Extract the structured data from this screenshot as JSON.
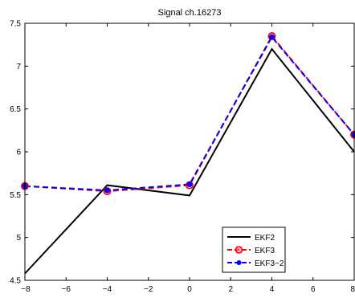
{
  "chart_data": {
    "type": "line",
    "title": "Signal ch.16273",
    "xlabel": "",
    "ylabel": "",
    "xlim": [
      -8,
      8
    ],
    "ylim": [
      4.5,
      7.5
    ],
    "xticks": [
      -8,
      -6,
      -4,
      -2,
      0,
      2,
      4,
      6,
      8
    ],
    "yticks": [
      4.5,
      5,
      5.5,
      6,
      6.5,
      7,
      7.5
    ],
    "xtick_labels": [
      "−8",
      "−6",
      "−4",
      "−2",
      "0",
      "2",
      "4",
      "6",
      "8"
    ],
    "ytick_labels": [
      "4.5",
      "5",
      "5.5",
      "6",
      "6.5",
      "7",
      "7.5"
    ],
    "grid": false,
    "legend_position": "bottom-right",
    "series": [
      {
        "name": "EKF2",
        "x": [
          -8,
          -4,
          0,
          4,
          8
        ],
        "y": [
          4.58,
          5.61,
          5.49,
          7.2,
          6.0
        ],
        "color": "#000000",
        "line_style": "solid",
        "marker": "none"
      },
      {
        "name": "EKF3",
        "x": [
          -8,
          -4,
          0,
          4,
          8
        ],
        "y": [
          5.6,
          5.54,
          5.61,
          7.35,
          6.2
        ],
        "color": "#ff0000",
        "line_style": "dashed",
        "marker": "circle-open"
      },
      {
        "name": "EKF3−2",
        "x": [
          -8,
          -4,
          0,
          4,
          8
        ],
        "y": [
          5.6,
          5.55,
          5.62,
          7.34,
          6.2
        ],
        "color": "#0000ff",
        "line_style": "dashed",
        "marker": "circle-filled"
      }
    ]
  }
}
